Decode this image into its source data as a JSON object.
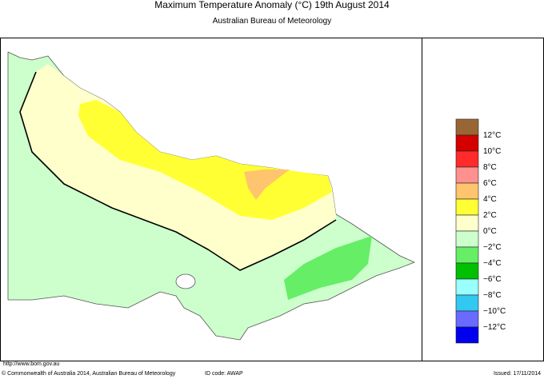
{
  "header": {
    "title": "Maximum Temperature Anomaly (°C)  19th August 2014",
    "subtitle": "Australian Bureau of Meteorology"
  },
  "legend": {
    "colors": [
      "#996633",
      "#d40000",
      "#ff2a2a",
      "#ff9090",
      "#ffc46e",
      "#ffff33",
      "#ffffcc",
      "#ccffcc",
      "#66ee66",
      "#00c000",
      "#99ffff",
      "#33c8f0",
      "#6a6aff",
      "#0000ee"
    ],
    "labels": [
      "12°C",
      "10°C",
      "8°C",
      "6°C",
      "4°C",
      "2°C",
      "0°C",
      "−2°C",
      "−4°C",
      "−6°C",
      "−8°C",
      "−10°C",
      "−12°C"
    ]
  },
  "footer": {
    "url": "http://www.bom.gov.au",
    "copyright": "© Commonwealth of Australia 2014, Australian Bureau of Meteorology",
    "id_code": "ID code: AWAP",
    "issued": "Issued: 17/11/2014"
  }
}
